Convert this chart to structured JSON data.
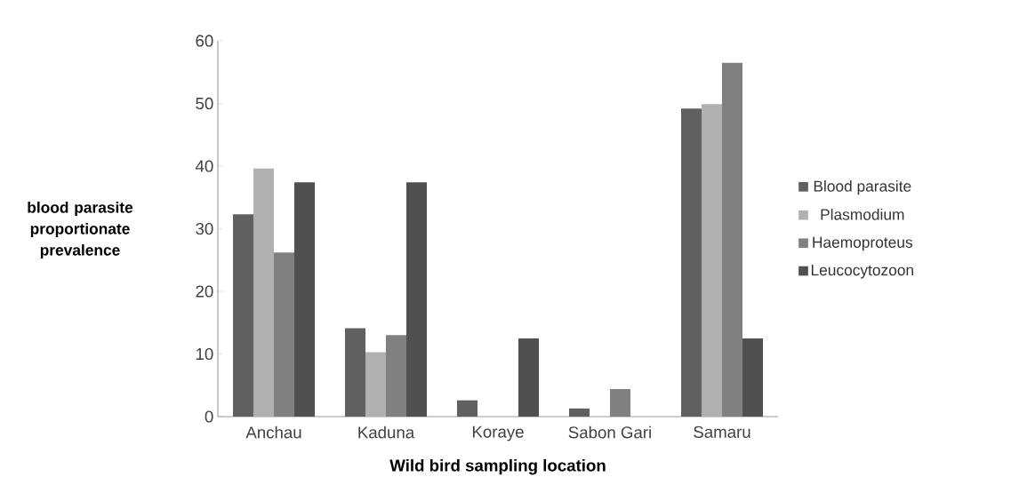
{
  "chart_data": {
    "type": "bar",
    "xlabel": "Wild bird sampling location",
    "ylabel": "blood parasite proportionate prevalence",
    "categories": [
      "Anchau",
      "Kaduna",
      "Koraye",
      "Sabon Gari",
      "Samaru"
    ],
    "series": [
      {
        "name": "Blood parasite",
        "color": "#606060",
        "values": [
          32.3,
          14.1,
          2.6,
          1.3,
          49.2
        ]
      },
      {
        "name": "Plasmodium",
        "color": "#b0b0b0",
        "values": [
          39.6,
          10.3,
          0,
          0,
          49.9
        ]
      },
      {
        "name": "Haemoproteus",
        "color": "#808080",
        "values": [
          26.2,
          13.0,
          0,
          4.4,
          56.5
        ]
      },
      {
        "name": "Leucocytozoon",
        "color": "#505050",
        "values": [
          37.4,
          37.4,
          12.5,
          0,
          12.5
        ]
      }
    ],
    "ylim": [
      0,
      60
    ],
    "yticks": [
      0,
      10,
      20,
      30,
      40,
      50,
      60
    ],
    "grid": false,
    "legend": "right"
  }
}
